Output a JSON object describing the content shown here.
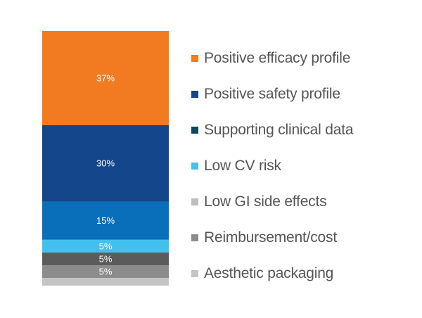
{
  "chart_data": {
    "type": "bar",
    "stacked": true,
    "orientation": "vertical",
    "categories": [
      ""
    ],
    "series": [
      {
        "name": "Positive efficacy profile",
        "values": [
          37
        ],
        "label": "37%",
        "color": "#f27b21"
      },
      {
        "name": "Positive safety profile",
        "values": [
          30
        ],
        "label": "30%",
        "color": "#13468b"
      },
      {
        "name": "Supporting clinical data",
        "values": [
          15
        ],
        "label": "15%",
        "color": "#0a6fba"
      },
      {
        "name": "Low CV risk",
        "values": [
          5
        ],
        "label": "5%",
        "color": "#43c1ee"
      },
      {
        "name": "Low GI side effects",
        "values": [
          5
        ],
        "label": "5%",
        "color": "#5b5b5b"
      },
      {
        "name": "Reimbursement/cost",
        "values": [
          5
        ],
        "label": "5%",
        "color": "#8c8c8c"
      },
      {
        "name": "Aesthetic packaging",
        "values": [
          3
        ],
        "label": "",
        "color": "#c4c4c4"
      }
    ],
    "legend_markers": [
      {
        "name": "Positive efficacy profile",
        "color": "#f27b21"
      },
      {
        "name": "Positive safety profile",
        "color": "#13468b"
      },
      {
        "name": "Supporting clinical data",
        "color": "#0b4a5e"
      },
      {
        "name": "Low CV risk",
        "color": "#43c1ee"
      },
      {
        "name": "Low GI side effects",
        "color": "#bdbdbd"
      },
      {
        "name": "Reimbursement/cost",
        "color": "#8c8c8c"
      },
      {
        "name": "Aesthetic packaging",
        "color": "#c4c4c4"
      }
    ],
    "title": "",
    "xlabel": "",
    "ylabel": "",
    "ylim": [
      0,
      100
    ],
    "grid": false,
    "axes_visible": false,
    "legend_position": "right"
  }
}
